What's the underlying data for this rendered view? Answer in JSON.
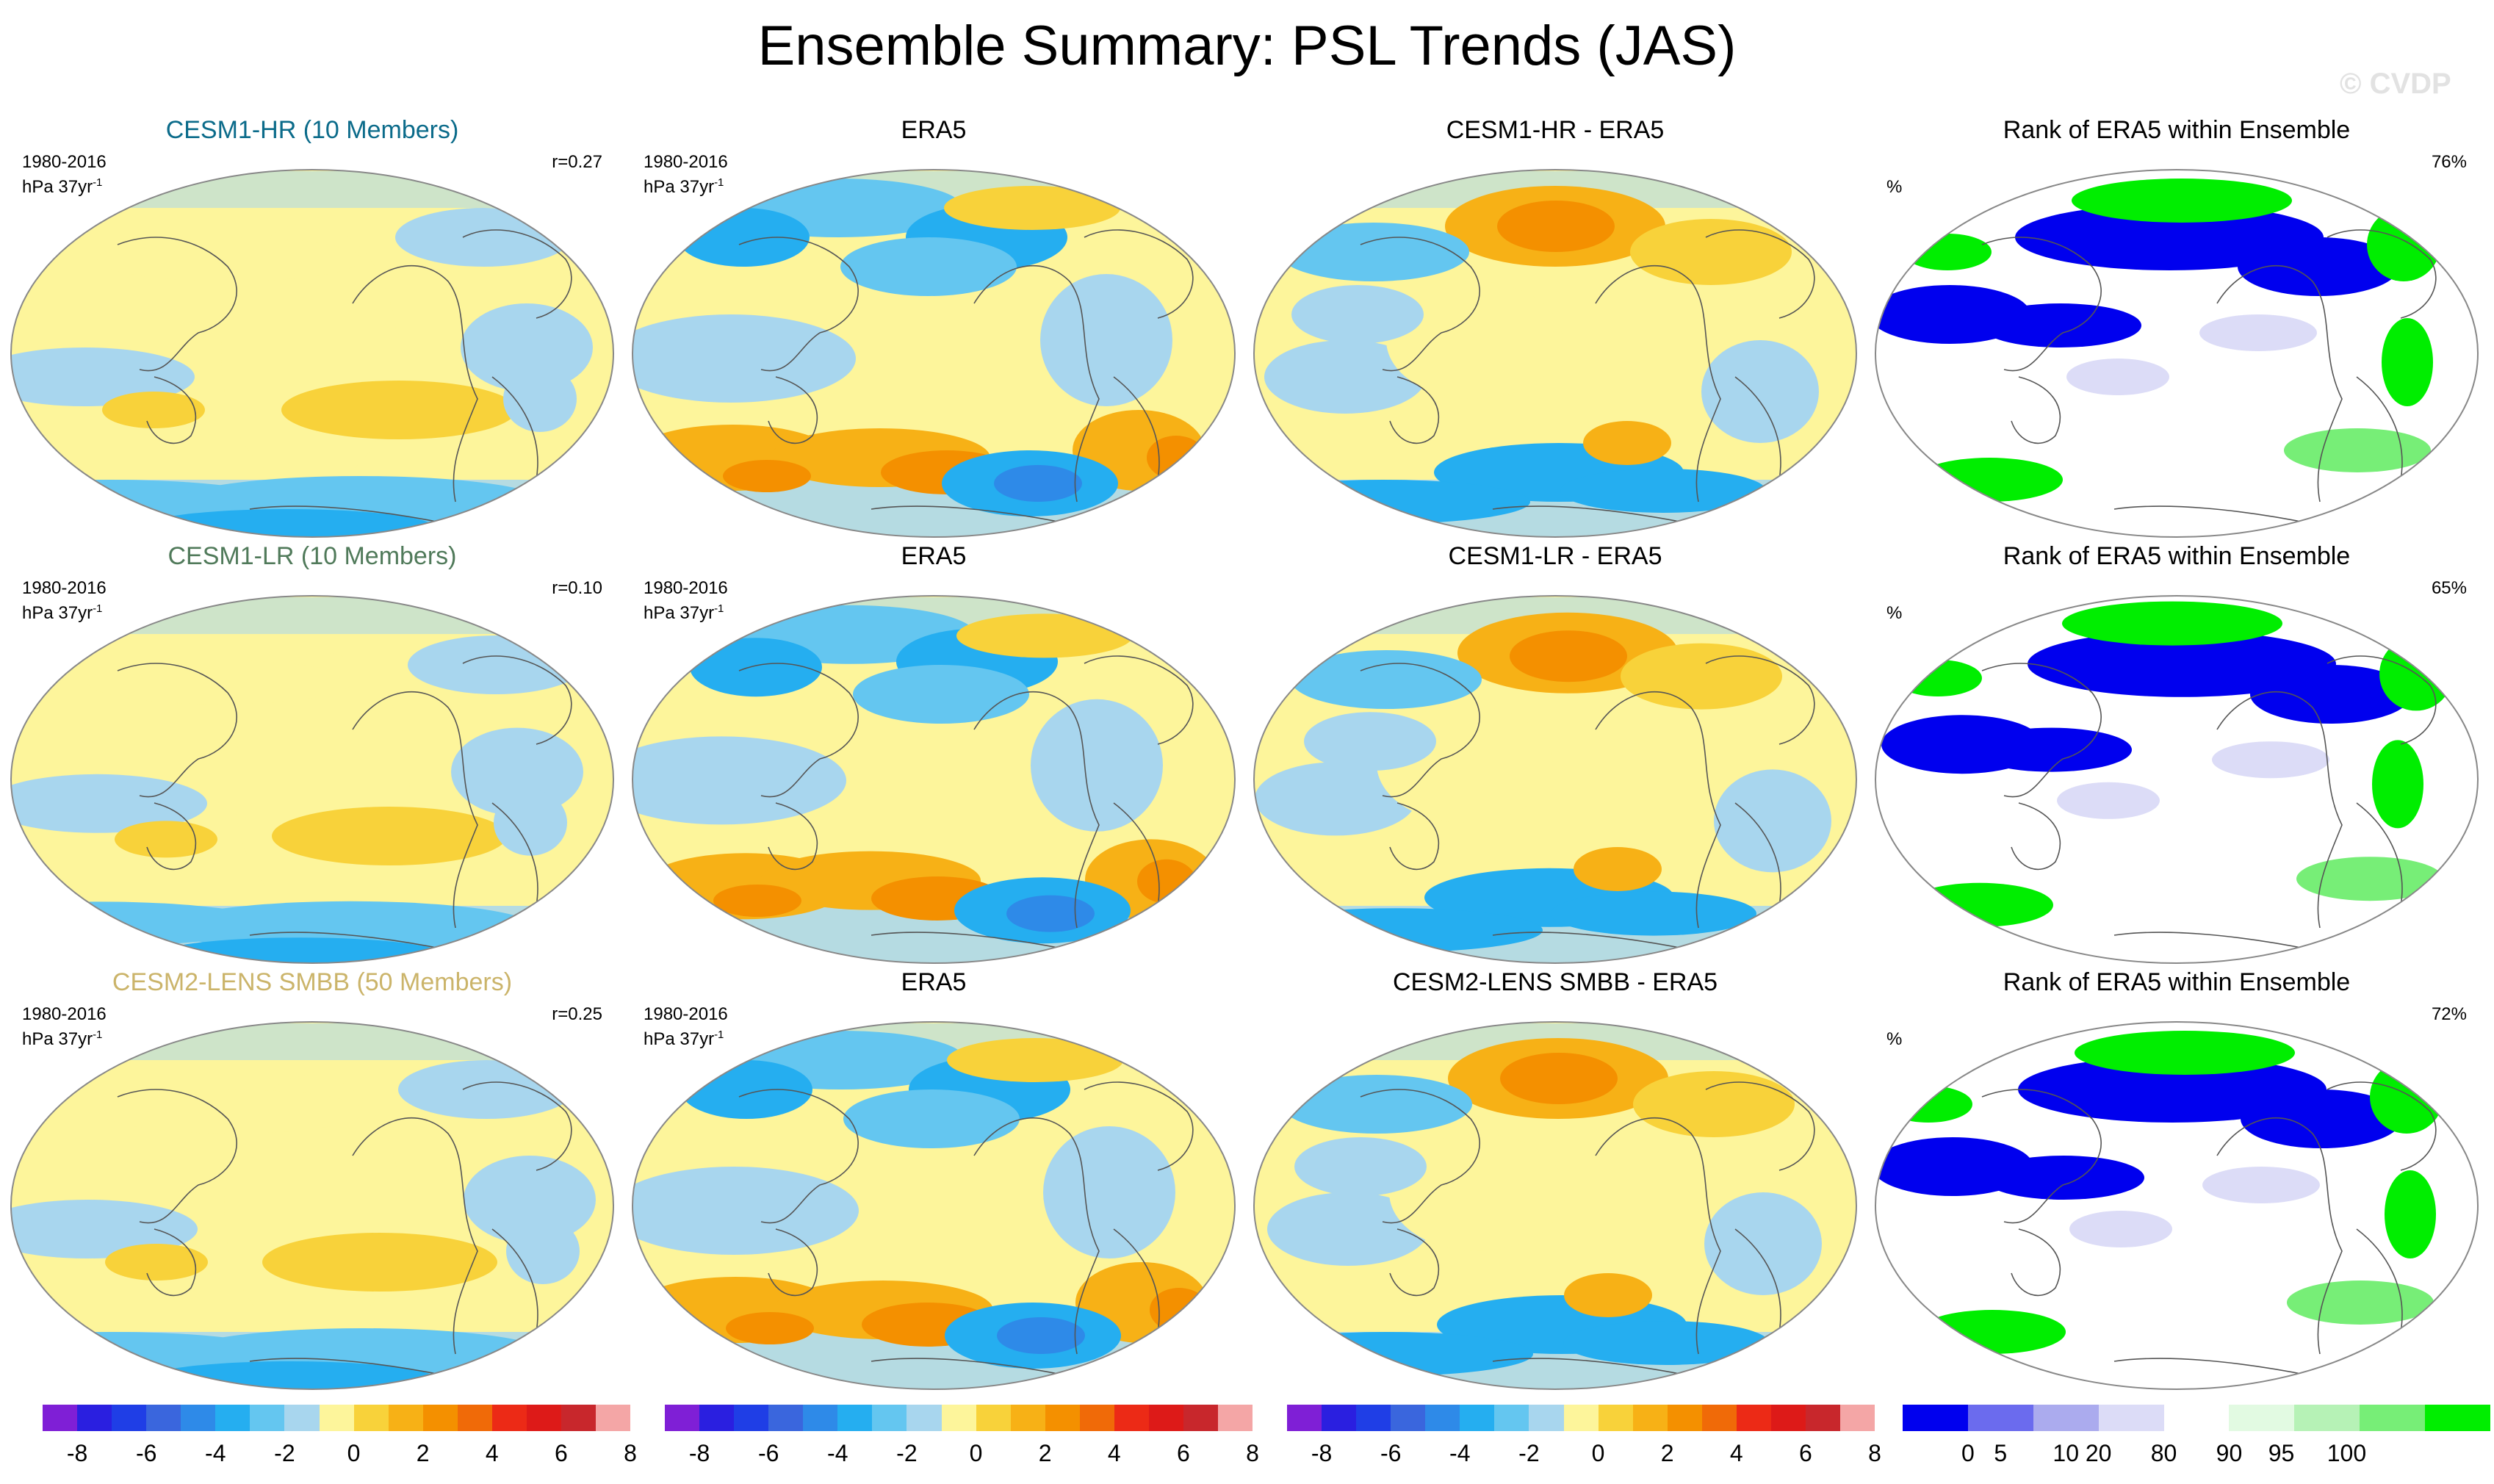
{
  "title": "Ensemble Summary: PSL Trends (JAS)",
  "watermark": "© CVDP",
  "colors": {
    "trend": [
      "#7f1fd6",
      "#2a1fe0",
      "#1f3ee6",
      "#3a66dd",
      "#2e8ae8",
      "#25aef0",
      "#64c6f0",
      "#a8d6ee",
      "#fdf59b",
      "#f8d23a",
      "#f7b116",
      "#f49000",
      "#f06a08",
      "#ec2a16",
      "#dd1a18",
      "#c8272c",
      "#f4a6a6"
    ],
    "rank": [
      "#0000ee",
      "#6b6bee",
      "#ababee",
      "#dcdcf7",
      "#ffffff",
      "#e2fae2",
      "#b6f2b6",
      "#77ee77",
      "#00ee00"
    ],
    "land_outline": "#555555",
    "map_border": "#888888",
    "model_title_colors": [
      "#0b6b8a",
      "#507a5a",
      "#cbb46a"
    ]
  },
  "rows": [
    {
      "model": {
        "title": "CESM1-HR (10 Members)",
        "period": "1980-2016",
        "units": "hPa 37yr",
        "units_exp": "-1",
        "corr": "r=0.27"
      },
      "obs": {
        "title": "ERA5",
        "period": "1980-2016",
        "units": "hPa 37yr",
        "units_exp": "-1"
      },
      "diff": {
        "title": "CESM1-HR - ERA5"
      },
      "rank": {
        "title": "Rank of ERA5 within Ensemble",
        "unit": "%",
        "value": "76%"
      }
    },
    {
      "model": {
        "title": "CESM1-LR (10 Members)",
        "period": "1980-2016",
        "units": "hPa 37yr",
        "units_exp": "-1",
        "corr": "r=0.10"
      },
      "obs": {
        "title": "ERA5",
        "period": "1980-2016",
        "units": "hPa 37yr",
        "units_exp": "-1"
      },
      "diff": {
        "title": "CESM1-LR - ERA5"
      },
      "rank": {
        "title": "Rank of ERA5 within Ensemble",
        "unit": "%",
        "value": "65%"
      }
    },
    {
      "model": {
        "title": "CESM2-LENS SMBB (50 Members)",
        "period": "1980-2016",
        "units": "hPa 37yr",
        "units_exp": "-1",
        "corr": "r=0.25"
      },
      "obs": {
        "title": "ERA5",
        "period": "1980-2016",
        "units": "hPa 37yr",
        "units_exp": "-1"
      },
      "diff": {
        "title": "CESM2-LENS SMBB - ERA5"
      },
      "rank": {
        "title": "Rank of ERA5 within Ensemble",
        "unit": "%",
        "value": "72%"
      }
    }
  ],
  "colorbars": {
    "trend_ticks": [
      "-8",
      "-6",
      "-4",
      "-2",
      "0",
      "2",
      "4",
      "6",
      "8"
    ],
    "rank_ticks": [
      "0",
      "5",
      "10",
      "20",
      "80",
      "90",
      "95",
      "100"
    ]
  },
  "chart_data": [
    {
      "type": "heatmap",
      "title": "CESM1-HR (10 Members)",
      "variable": "PSL trend",
      "season": "JAS",
      "period": "1980-2016",
      "units": "hPa 37yr-1",
      "pattern_correlation": 0.27,
      "range": [
        -8,
        8
      ],
      "features": [
        {
          "region": "Southern Hemisphere mid-latitudes (Pacific)",
          "value": 2.5
        },
        {
          "region": "Antarctic circumpolar band",
          "value": -3
        },
        {
          "region": "Tropical Indian Ocean",
          "value": -1
        },
        {
          "region": "Tropical Pacific",
          "value": 0.5
        }
      ]
    },
    {
      "type": "heatmap",
      "title": "ERA5",
      "row": 1,
      "period": "1980-2016",
      "units": "hPa 37yr-1",
      "range": [
        -8,
        8
      ],
      "features": [
        {
          "region": "Amundsen Sea",
          "value": -6
        },
        {
          "region": "South Pacific mid-latitudes",
          "value": 4
        },
        {
          "region": "South Atlantic / Indian mid-latitudes",
          "value": 4
        },
        {
          "region": "Arctic / North Atlantic",
          "value": -3
        },
        {
          "region": "Tropical Indian / Maritime continent",
          "value": -1
        }
      ]
    },
    {
      "type": "heatmap",
      "title": "CESM1-HR - ERA5",
      "range": [
        -8,
        8
      ],
      "features": [
        {
          "region": "Arctic / northern North America",
          "value": 4
        },
        {
          "region": "Amundsen Sea",
          "value": 4
        },
        {
          "region": "Southern Ocean (Indian sector)",
          "value": -4
        },
        {
          "region": "South Pacific mid-latitudes",
          "value": -3
        }
      ]
    },
    {
      "type": "heatmap",
      "title": "Rank of ERA5 within Ensemble",
      "units": "%",
      "value_shown": "76%",
      "range": [
        0,
        100
      ],
      "features": [
        {
          "region": "Tropical Indian Ocean",
          "value": 0
        },
        {
          "region": "North Pacific",
          "value": 0
        },
        {
          "region": "Arctic",
          "value": 100
        },
        {
          "region": "South Atlantic",
          "value": 100
        }
      ]
    },
    {
      "type": "heatmap",
      "title": "CESM1-LR (10 Members)",
      "pattern_correlation": 0.1,
      "range": [
        -8,
        8
      ],
      "features": [
        {
          "region": "North Pacific",
          "value": 2
        },
        {
          "region": "Southern Ocean band",
          "value": -1
        },
        {
          "region": "Tropics",
          "value": 0
        }
      ]
    },
    {
      "type": "heatmap",
      "title": "ERA5",
      "row": 2,
      "range": [
        -8,
        8
      ],
      "features": [
        {
          "region": "Amundsen Sea",
          "value": -6
        },
        {
          "region": "South Pacific mid-latitudes",
          "value": 4
        },
        {
          "region": "South Atlantic / Indian mid-latitudes",
          "value": 4
        }
      ]
    },
    {
      "type": "heatmap",
      "title": "CESM1-LR - ERA5",
      "range": [
        -8,
        8
      ],
      "features": [
        {
          "region": "Arctic / northern North America",
          "value": 4
        },
        {
          "region": "Amundsen Sea",
          "value": 5
        },
        {
          "region": "Southern Ocean (Indian sector)",
          "value": -4
        }
      ]
    },
    {
      "type": "heatmap",
      "title": "Rank of ERA5 within Ensemble",
      "units": "%",
      "value_shown": "65%",
      "range": [
        0,
        100
      ],
      "features": [
        {
          "region": "Tropical Indian Ocean",
          "value": 0
        },
        {
          "region": "North Pacific / Asia",
          "value": 0
        },
        {
          "region": "Arctic",
          "value": 100
        },
        {
          "region": "South Pacific",
          "value": 100
        }
      ]
    },
    {
      "type": "heatmap",
      "title": "CESM2-LENS SMBB (50 Members)",
      "pattern_correlation": 0.25,
      "range": [
        -8,
        8
      ],
      "features": [
        {
          "region": "Southern Hemisphere mid-latitudes (Pacific)",
          "value": 2
        },
        {
          "region": "Tropical Indian Ocean",
          "value": -1
        },
        {
          "region": "North Pacific",
          "value": -1
        }
      ]
    },
    {
      "type": "heatmap",
      "title": "ERA5",
      "row": 3,
      "range": [
        -8,
        8
      ],
      "features": [
        {
          "region": "Amundsen Sea",
          "value": -6
        },
        {
          "region": "South Pacific mid-latitudes",
          "value": 4
        },
        {
          "region": "South Atlantic / Indian mid-latitudes",
          "value": 4
        }
      ]
    },
    {
      "type": "heatmap",
      "title": "CESM2-LENS SMBB - ERA5",
      "range": [
        -8,
        8
      ],
      "features": [
        {
          "region": "Arctic / northern North America",
          "value": 4
        },
        {
          "region": "Amundsen Sea",
          "value": 6
        },
        {
          "region": "Southern Ocean (Indian sector)",
          "value": -3
        }
      ]
    },
    {
      "type": "heatmap",
      "title": "Rank of ERA5 within Ensemble",
      "units": "%",
      "value_shown": "72%",
      "range": [
        0,
        100
      ],
      "features": [
        {
          "region": "Tropical Indian Ocean",
          "value": 5
        },
        {
          "region": "North Pacific",
          "value": 5
        },
        {
          "region": "Arctic",
          "value": 100
        },
        {
          "region": "Southern Ocean",
          "value": 95
        }
      ]
    }
  ]
}
